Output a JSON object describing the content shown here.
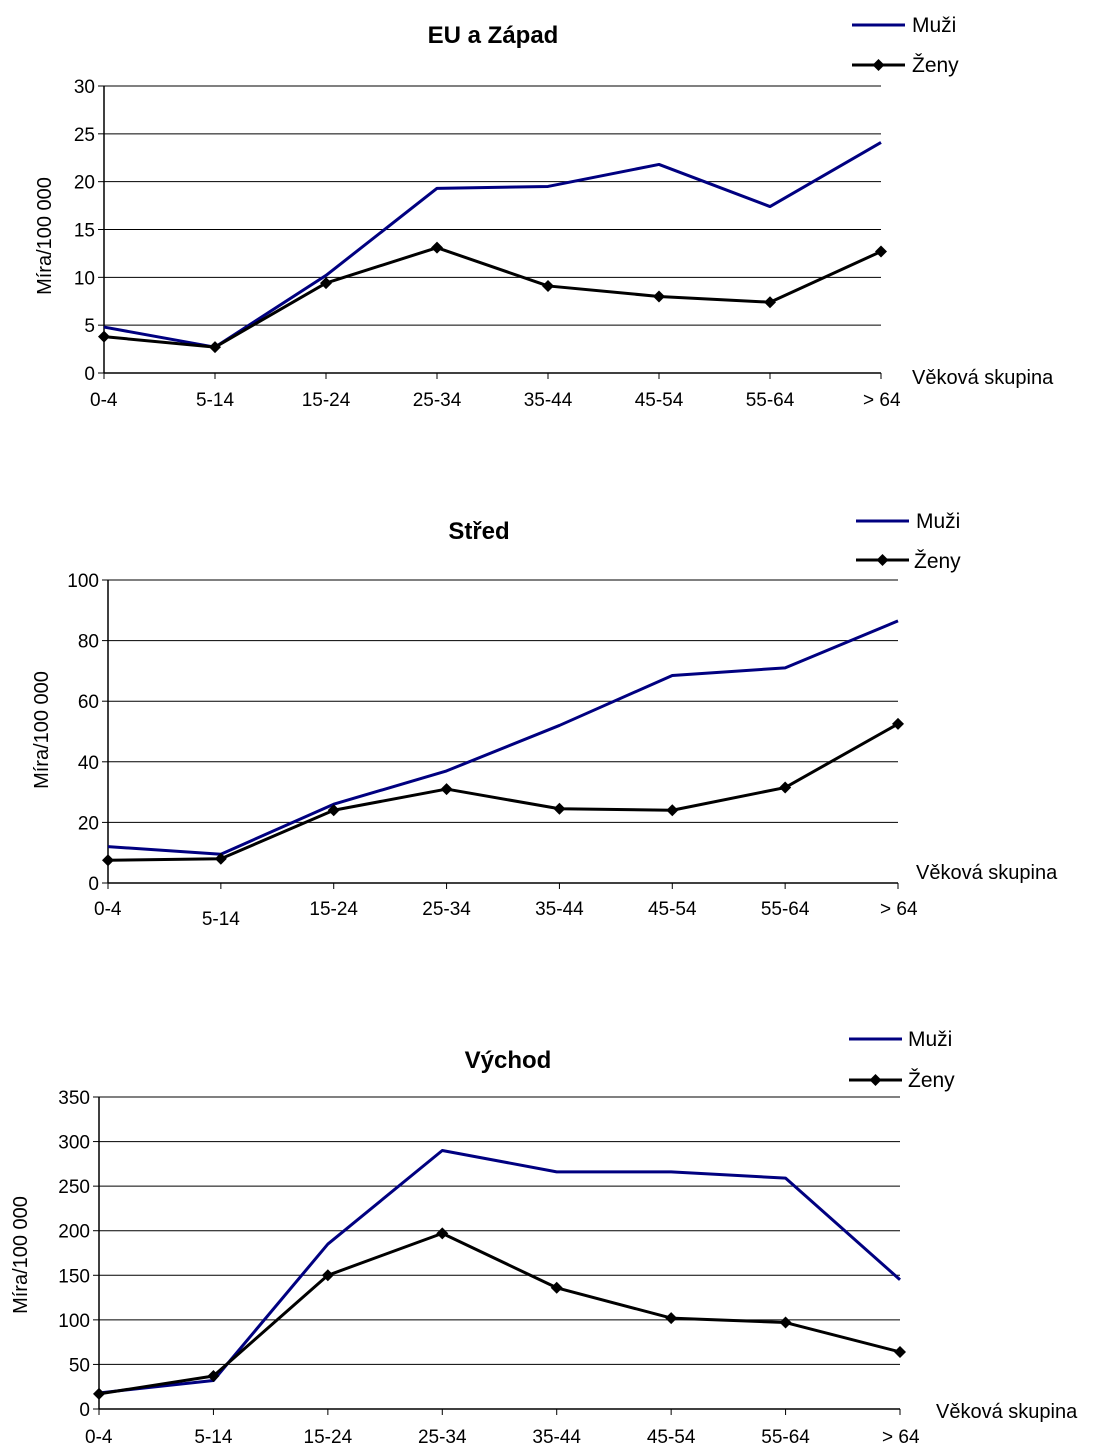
{
  "colors": {
    "muzi": "#000080",
    "zeny": "#000000",
    "grid": "#000000"
  },
  "chart_data": [
    {
      "type": "line",
      "title": "EU a Západ",
      "xlabel": "Věková skupina",
      "ylabel": "Míra/100 000",
      "categories": [
        "0-4",
        "5-14",
        "15-24",
        "25-34",
        "35-44",
        "45-54",
        "55-64",
        "> 64"
      ],
      "ylim": [
        0,
        30
      ],
      "yticks": [
        "0",
        "5",
        "10",
        "15",
        "20",
        "25",
        "30"
      ],
      "grid": true,
      "legend_position": "top-right",
      "series": [
        {
          "name": "Muži",
          "marker": "none",
          "values": [
            4.8,
            2.7,
            10.2,
            19.3,
            19.5,
            21.8,
            17.4,
            24.1
          ]
        },
        {
          "name": "Ženy",
          "marker": "diamond",
          "values": [
            3.8,
            2.7,
            9.4,
            13.1,
            9.1,
            8.0,
            7.4,
            12.7
          ]
        }
      ]
    },
    {
      "type": "line",
      "title": "Střed",
      "xlabel": "Věková skupina",
      "ylabel": "Míra/100 000",
      "categories": [
        "0-4",
        "5-14",
        "15-24",
        "25-34",
        "35-44",
        "45-54",
        "55-64",
        "> 64"
      ],
      "ylim": [
        0,
        100
      ],
      "yticks": [
        "0",
        "20",
        "40",
        "60",
        "80",
        "100"
      ],
      "grid": true,
      "legend_position": "top-right",
      "series": [
        {
          "name": "Muži",
          "marker": "none",
          "values": [
            12,
            9.5,
            26,
            37,
            52,
            68.5,
            71,
            86.5
          ]
        },
        {
          "name": "Ženy",
          "marker": "diamond",
          "values": [
            7.5,
            8,
            24,
            31,
            24.5,
            24,
            31.5,
            52.5
          ]
        }
      ]
    },
    {
      "type": "line",
      "title": "Východ",
      "xlabel": "Věková skupina",
      "ylabel": "Míra/100 000",
      "categories": [
        "0-4",
        "5-14",
        "15-24",
        "25-34",
        "35-44",
        "45-54",
        "55-64",
        "> 64"
      ],
      "ylim": [
        0,
        350
      ],
      "yticks": [
        "0",
        "50",
        "100",
        "150",
        "200",
        "250",
        "300",
        "350"
      ],
      "grid": true,
      "legend_position": "top-right",
      "series": [
        {
          "name": "Muži",
          "marker": "none",
          "values": [
            18,
            32,
            185,
            290,
            266,
            266,
            259,
            145
          ]
        },
        {
          "name": "Ženy",
          "marker": "diamond",
          "values": [
            17,
            37,
            150,
            197,
            136,
            102,
            97,
            64
          ]
        }
      ]
    }
  ]
}
